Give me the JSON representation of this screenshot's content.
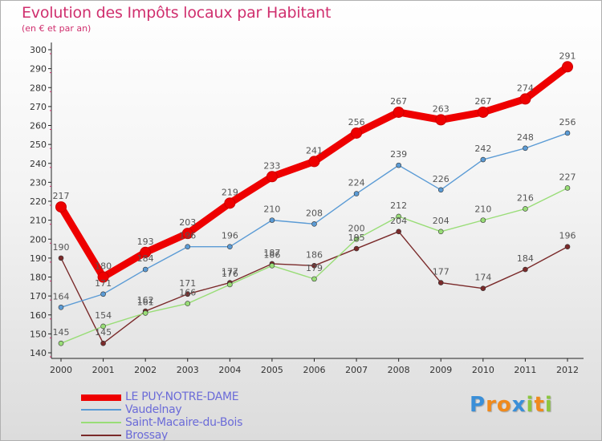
{
  "chart_data": {
    "type": "line",
    "title": "Evolution des Impôts locaux par Habitant",
    "subtitle": "(en € et par an)",
    "x": [
      "2000",
      "2001",
      "2002",
      "2003",
      "2004",
      "2005",
      "2006",
      "2007",
      "2008",
      "2009",
      "2010",
      "2011",
      "2012"
    ],
    "ylim": [
      140,
      300
    ],
    "yticks": [
      140,
      150,
      160,
      170,
      180,
      190,
      200,
      210,
      220,
      230,
      240,
      250,
      260,
      270,
      280,
      290,
      300
    ],
    "grid": false,
    "legend_position": "bottom-left",
    "series": [
      {
        "name": "LE PUY-NOTRE-DAME",
        "color": "#ee0000",
        "values": [
          217,
          180,
          193,
          203,
          219,
          233,
          241,
          256,
          267,
          263,
          267,
          274,
          291
        ]
      },
      {
        "name": "Vaudelnay",
        "color": "#5b9bd5",
        "values": [
          164,
          171,
          184,
          196,
          196,
          210,
          208,
          224,
          239,
          226,
          242,
          248,
          256
        ]
      },
      {
        "name": "Saint-Macaire-du-Bois",
        "color": "#99dd77",
        "values": [
          145,
          154,
          161,
          166,
          176,
          186,
          179,
          200,
          212,
          204,
          210,
          216,
          227
        ]
      },
      {
        "name": "Brossay",
        "color": "#7a2a2a",
        "values": [
          190,
          145,
          162,
          171,
          177,
          187,
          186,
          195,
          204,
          177,
          174,
          184,
          196
        ]
      }
    ]
  },
  "logo": {
    "letters": [
      "P",
      "r",
      "o",
      "x",
      "i",
      "t",
      "i"
    ],
    "colors": [
      "#3a8fd8",
      "#f08a1c",
      "#f08a1c",
      "#3a8fd8",
      "#8cc63f",
      "#f08a1c",
      "#8cc63f"
    ]
  }
}
